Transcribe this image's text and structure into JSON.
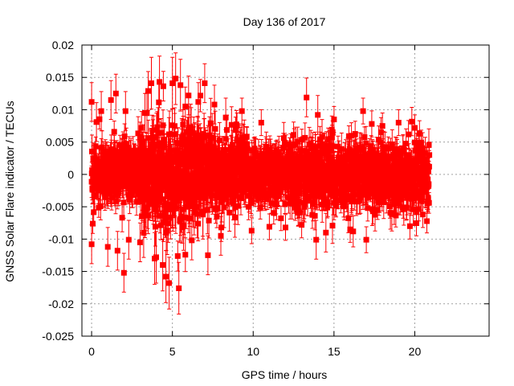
{
  "chart_data": {
    "type": "scatter",
    "title": "Day 136 of 2017",
    "xlabel": "GPS time / hours",
    "ylabel": "GNSS Solar Flare indicator / TECUs",
    "xlim": [
      -0.6,
      24.6
    ],
    "ylim": [
      -0.025,
      0.02
    ],
    "xticks": [
      0,
      5,
      10,
      15,
      20
    ],
    "xtick_labels": [
      "0",
      "5",
      "10",
      "15",
      "20"
    ],
    "yticks": [
      -0.025,
      -0.02,
      -0.015,
      -0.01,
      -0.005,
      0,
      0.005,
      0.01,
      0.015,
      0.02
    ],
    "ytick_labels": [
      "-0.025",
      "-0.02",
      "-0.015",
      "-0.01",
      "-0.005",
      "0",
      "0.005",
      "0.01",
      "0.015",
      "0.02"
    ],
    "grid": true,
    "series": [
      {
        "color": "#ff0000",
        "marker": "square",
        "error_bars": true,
        "x_range": [
          0,
          20.9
        ],
        "x_step": 0.01,
        "typical_spread": 0.004,
        "typical_error": 0.002,
        "points": [
          {
            "x": 0.0,
            "y": 0.0112,
            "err": 0.003
          },
          {
            "x": 0.0,
            "y": -0.0108,
            "err": 0.003
          },
          {
            "x": 0.3,
            "y": 0.0081,
            "err": 0.003
          },
          {
            "x": 0.6,
            "y": 0.0098,
            "err": 0.003
          },
          {
            "x": 1.0,
            "y": -0.0112,
            "err": 0.003
          },
          {
            "x": 1.2,
            "y": 0.0115,
            "err": 0.003
          },
          {
            "x": 1.5,
            "y": 0.0125,
            "err": 0.003
          },
          {
            "x": 1.6,
            "y": -0.0118,
            "err": 0.003
          },
          {
            "x": 2.0,
            "y": -0.0152,
            "err": 0.003
          },
          {
            "x": 2.1,
            "y": 0.0098,
            "err": 0.003
          },
          {
            "x": 2.3,
            "y": -0.0101,
            "err": 0.003
          },
          {
            "x": 3.0,
            "y": -0.0105,
            "err": 0.003
          },
          {
            "x": 3.3,
            "y": 0.0095,
            "err": 0.003
          },
          {
            "x": 3.5,
            "y": 0.0129,
            "err": 0.003
          },
          {
            "x": 3.7,
            "y": 0.0141,
            "err": 0.004
          },
          {
            "x": 3.9,
            "y": -0.013,
            "err": 0.004
          },
          {
            "x": 4.0,
            "y": -0.0128,
            "err": 0.004
          },
          {
            "x": 4.2,
            "y": 0.0143,
            "err": 0.004
          },
          {
            "x": 4.4,
            "y": -0.014,
            "err": 0.004
          },
          {
            "x": 4.6,
            "y": -0.0158,
            "err": 0.004
          },
          {
            "x": 4.8,
            "y": -0.0168,
            "err": 0.004
          },
          {
            "x": 5.0,
            "y": 0.0141,
            "err": 0.004
          },
          {
            "x": 5.2,
            "y": 0.0148,
            "err": 0.004
          },
          {
            "x": 5.4,
            "y": -0.0176,
            "err": 0.004
          },
          {
            "x": 5.5,
            "y": 0.0138,
            "err": 0.004
          },
          {
            "x": 5.8,
            "y": 0.0105,
            "err": 0.003
          },
          {
            "x": 6.0,
            "y": 0.0122,
            "err": 0.003
          },
          {
            "x": 6.2,
            "y": -0.0102,
            "err": 0.003
          },
          {
            "x": 6.6,
            "y": 0.0112,
            "err": 0.003
          },
          {
            "x": 7.0,
            "y": 0.0141,
            "err": 0.003
          },
          {
            "x": 7.2,
            "y": -0.0125,
            "err": 0.003
          },
          {
            "x": 7.6,
            "y": 0.0108,
            "err": 0.003
          },
          {
            "x": 8.0,
            "y": -0.0095,
            "err": 0.003
          },
          {
            "x": 8.3,
            "y": 0.0088,
            "err": 0.003
          },
          {
            "x": 9.0,
            "y": 0.0075,
            "err": 0.002
          },
          {
            "x": 9.3,
            "y": 0.0098,
            "err": 0.002
          },
          {
            "x": 9.9,
            "y": -0.0087,
            "err": 0.002
          },
          {
            "x": 10.5,
            "y": 0.008,
            "err": 0.002
          },
          {
            "x": 11.0,
            "y": -0.0081,
            "err": 0.002
          },
          {
            "x": 12.0,
            "y": -0.0082,
            "err": 0.002
          },
          {
            "x": 12.5,
            "y": 0.0061,
            "err": 0.002
          },
          {
            "x": 13.0,
            "y": -0.0078,
            "err": 0.002
          },
          {
            "x": 13.3,
            "y": 0.0119,
            "err": 0.003
          },
          {
            "x": 13.9,
            "y": -0.0101,
            "err": 0.003
          },
          {
            "x": 14.0,
            "y": 0.0092,
            "err": 0.003
          },
          {
            "x": 14.5,
            "y": -0.009,
            "err": 0.003
          },
          {
            "x": 15.0,
            "y": 0.0085,
            "err": 0.002
          },
          {
            "x": 16.0,
            "y": -0.0085,
            "err": 0.002
          },
          {
            "x": 16.8,
            "y": 0.0098,
            "err": 0.002
          },
          {
            "x": 17.0,
            "y": -0.0101,
            "err": 0.002
          },
          {
            "x": 18.0,
            "y": 0.0075,
            "err": 0.002
          },
          {
            "x": 19.0,
            "y": 0.008,
            "err": 0.002
          },
          {
            "x": 19.7,
            "y": -0.008,
            "err": 0.002
          },
          {
            "x": 20.0,
            "y": 0.0072,
            "err": 0.002
          },
          {
            "x": 20.5,
            "y": -0.0062,
            "err": 0.002
          },
          {
            "x": 20.9,
            "y": 0.003,
            "err": 0.002
          }
        ]
      }
    ]
  }
}
